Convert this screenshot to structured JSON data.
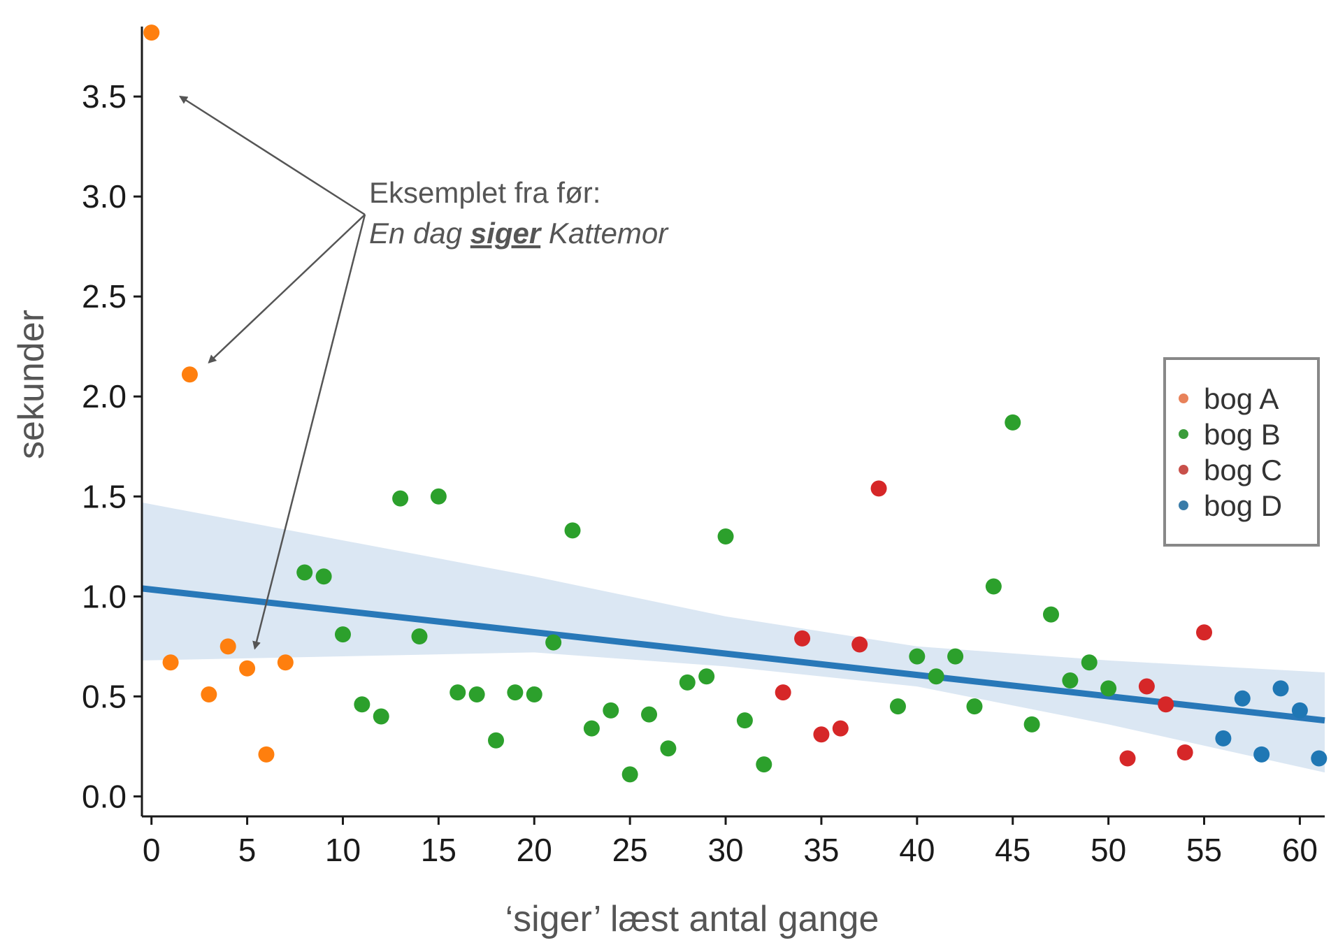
{
  "chart_data": {
    "type": "scatter",
    "title": "",
    "xlabel": "‘siger’ læst antal gange",
    "ylabel": "sekunder",
    "xlim": [
      -0.5,
      61.3
    ],
    "ylim": [
      -0.1,
      3.85
    ],
    "xticks": [
      0,
      5,
      10,
      15,
      20,
      25,
      30,
      35,
      40,
      45,
      50,
      55,
      60
    ],
    "yticks": [
      0.0,
      0.5,
      1.0,
      1.5,
      2.0,
      2.5,
      3.0,
      3.5
    ],
    "xtick_labels": [
      "0",
      "5",
      "10",
      "15",
      "20",
      "25",
      "30",
      "35",
      "40",
      "45",
      "50",
      "55",
      "60"
    ],
    "ytick_labels": [
      "0.0",
      "0.5",
      "1.0",
      "1.5",
      "2.0",
      "2.5",
      "3.0",
      "3.5"
    ],
    "grid": false,
    "legend_position": "right",
    "series": [
      {
        "name": "bog A",
        "color": "#ff7f0e",
        "legend_color": "#e8825a",
        "points": [
          [
            0,
            3.82
          ],
          [
            1,
            0.67
          ],
          [
            2,
            2.11
          ],
          [
            3,
            0.51
          ],
          [
            4,
            0.75
          ],
          [
            5,
            0.64
          ],
          [
            6,
            0.21
          ],
          [
            7,
            0.67
          ]
        ]
      },
      {
        "name": "bog B",
        "color": "#2ca02c",
        "legend_color": "#3a9c3a",
        "points": [
          [
            8,
            1.12
          ],
          [
            9,
            1.1
          ],
          [
            10,
            0.81
          ],
          [
            11,
            0.46
          ],
          [
            12,
            0.4
          ],
          [
            13,
            1.49
          ],
          [
            14,
            0.8
          ],
          [
            15,
            1.5
          ],
          [
            16,
            0.52
          ],
          [
            17,
            0.51
          ],
          [
            18,
            0.28
          ],
          [
            19,
            0.52
          ],
          [
            20,
            0.51
          ],
          [
            21,
            0.77
          ],
          [
            22,
            1.33
          ],
          [
            23,
            0.34
          ],
          [
            24,
            0.43
          ],
          [
            25,
            0.11
          ],
          [
            26,
            0.41
          ],
          [
            27,
            0.24
          ],
          [
            28,
            0.57
          ],
          [
            29,
            0.6
          ],
          [
            30,
            1.3
          ],
          [
            31,
            0.38
          ],
          [
            32,
            0.16
          ],
          [
            39,
            0.45
          ],
          [
            40,
            0.7
          ],
          [
            41,
            0.6
          ],
          [
            42,
            0.7
          ],
          [
            43,
            0.45
          ],
          [
            44,
            1.05
          ],
          [
            45,
            1.87
          ],
          [
            46,
            0.36
          ],
          [
            47,
            0.91
          ],
          [
            48,
            0.58
          ],
          [
            49,
            0.67
          ],
          [
            50,
            0.54
          ]
        ]
      },
      {
        "name": "bog C",
        "color": "#d62728",
        "legend_color": "#c8504a",
        "points": [
          [
            33,
            0.52
          ],
          [
            34,
            0.79
          ],
          [
            35,
            0.31
          ],
          [
            36,
            0.34
          ],
          [
            37,
            0.76
          ],
          [
            38,
            1.54
          ],
          [
            51,
            0.19
          ],
          [
            52,
            0.55
          ],
          [
            53,
            0.46
          ],
          [
            54,
            0.22
          ],
          [
            55,
            0.82
          ]
        ]
      },
      {
        "name": "bog D",
        "color": "#1f77b4",
        "legend_color": "#3a7ca8",
        "points": [
          [
            56,
            0.29
          ],
          [
            57,
            0.49
          ],
          [
            58,
            0.21
          ],
          [
            59,
            0.54
          ],
          [
            60,
            0.43
          ],
          [
            61,
            0.19
          ]
        ]
      }
    ],
    "regression": {
      "color": "#2878b8",
      "band_color": "#dbe7f3",
      "line": [
        [
          -0.5,
          1.04
        ],
        [
          61.3,
          0.38
        ]
      ],
      "band_upper": [
        [
          -0.5,
          1.47
        ],
        [
          20,
          1.1
        ],
        [
          30,
          0.9
        ],
        [
          40,
          0.75
        ],
        [
          50,
          0.68
        ],
        [
          61.3,
          0.62
        ]
      ],
      "band_lower": [
        [
          -0.5,
          0.68
        ],
        [
          20,
          0.72
        ],
        [
          30,
          0.65
        ],
        [
          40,
          0.55
        ],
        [
          50,
          0.36
        ],
        [
          61.3,
          0.12
        ]
      ]
    },
    "annotation": {
      "line1": "Eksemplet fra før:",
      "line2_prefix": "En dag ",
      "line2_emphasis": "siger",
      "line2_suffix": " Kattemor",
      "arrow_color": "#555555",
      "arrow_targets": [
        [
          1.5,
          3.5
        ],
        [
          3,
          2.17
        ],
        [
          5.4,
          0.74
        ]
      ]
    }
  }
}
